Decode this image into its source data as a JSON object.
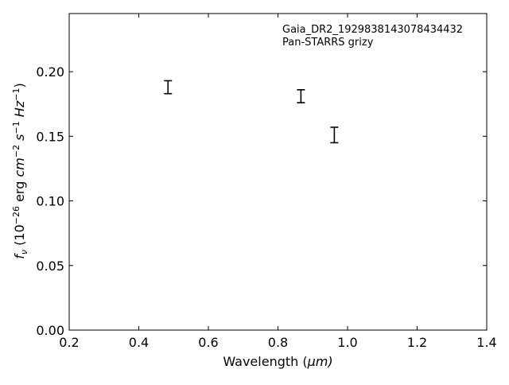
{
  "chart_data": {
    "type": "scatter",
    "xlabel": "Wavelength (µm)",
    "ylabel": "f_ν (10^-26 erg cm^-2 s^-1 Hz^-1)",
    "xlim": [
      0.2,
      1.4
    ],
    "ylim": [
      0.0,
      0.245
    ],
    "x_ticks": [
      0.2,
      0.4,
      0.6,
      0.8,
      1.0,
      1.2,
      1.4
    ],
    "y_ticks": [
      0.0,
      0.05,
      0.1,
      0.15,
      0.2
    ],
    "x_tick_labels": [
      "0.2",
      "0.4",
      "0.6",
      "0.8",
      "1.0",
      "1.2",
      "1.4"
    ],
    "y_tick_labels": [
      "0.00",
      "0.05",
      "0.10",
      "0.15",
      "0.20"
    ],
    "grid": false,
    "legend_placement": "top-right",
    "annotations": [
      "Gaia_DR2_1929838143078434432",
      "Pan-STARRS grizy"
    ],
    "series": [
      {
        "points": [
          {
            "x": 0.484,
            "y": 0.188,
            "yerr": 0.005
          },
          {
            "x": 0.866,
            "y": 0.181,
            "yerr": 0.005
          },
          {
            "x": 0.962,
            "y": 0.151,
            "yerr": 0.006
          }
        ]
      }
    ],
    "colors": {
      "marker": "#000000",
      "axes": "#000000",
      "background": "#ffffff"
    }
  }
}
